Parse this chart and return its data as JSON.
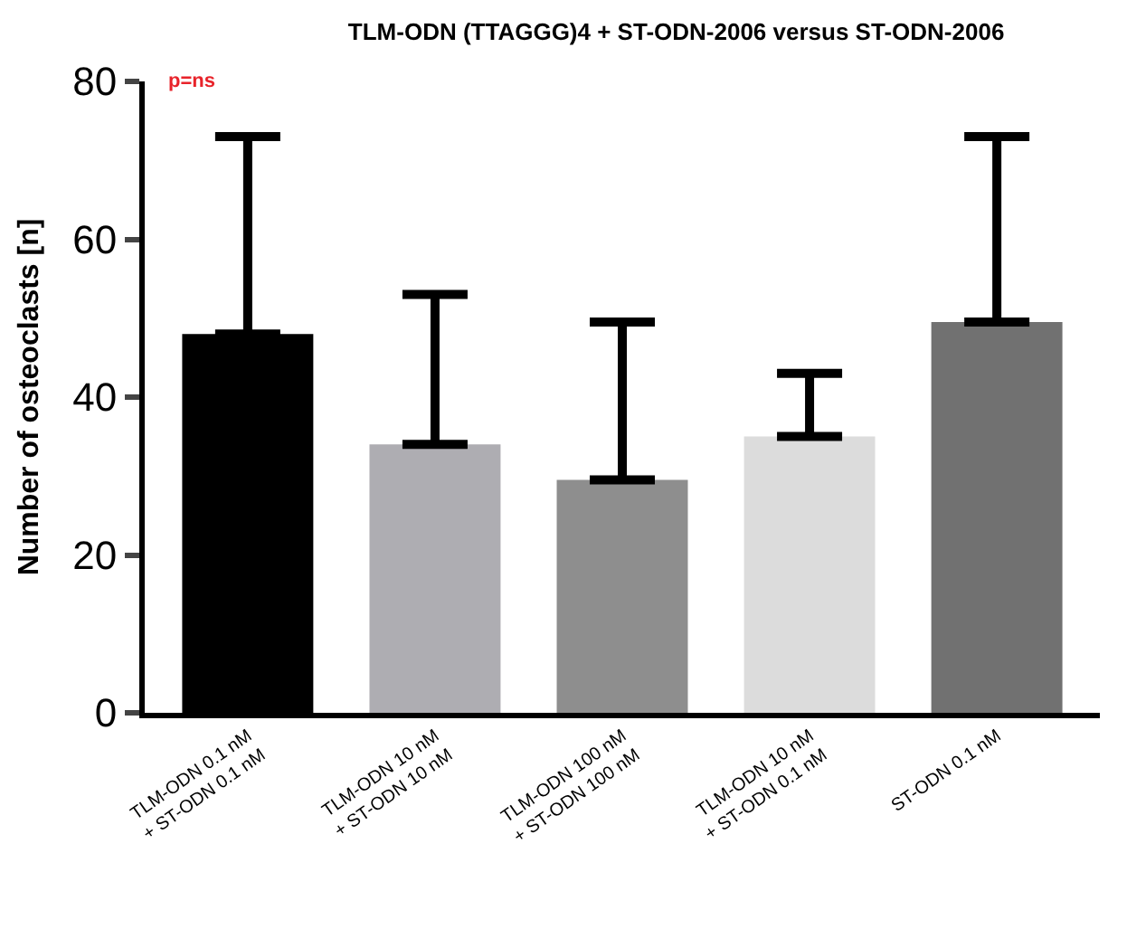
{
  "chart_data": {
    "type": "bar",
    "title": "TLM-ODN (TTAGGG)4 + ST-ODN-2006 versus ST-ODN-2006",
    "ylabel": "Number of osteoclasts [n]",
    "categories": [
      "TLM-ODN 0.1 nM\n+ ST-ODN 0.1 nM",
      "TLM-ODN 10 nM\n+ ST-ODN 10 nM",
      "TLM-ODN 100 nM\n+ ST-ODN 100 nM",
      "TLM-ODN 10 nM\n+ ST-ODN 0.1 nM",
      "ST-ODN 0.1 nM"
    ],
    "values": [
      48,
      34,
      29.5,
      35,
      49.5
    ],
    "errors": [
      [
        48,
        73
      ],
      [
        34,
        53
      ],
      [
        29.5,
        49.5
      ],
      [
        35,
        43
      ],
      [
        49.5,
        73
      ]
    ],
    "colors": [
      "#000000",
      "#aeadb2",
      "#8e8e8e",
      "#dcdcdc",
      "#717171"
    ],
    "ylim": [
      0,
      80
    ],
    "yticks": [
      0,
      20,
      40,
      60,
      80
    ],
    "annotations": [
      "p=ns"
    ]
  }
}
